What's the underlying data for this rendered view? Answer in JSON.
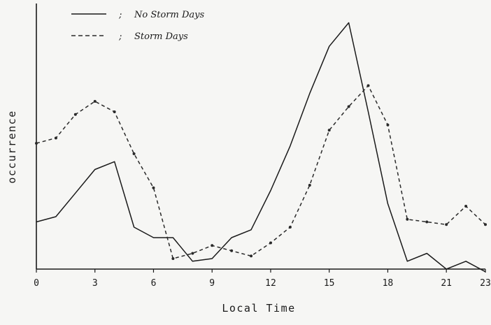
{
  "chart_data": {
    "type": "line",
    "title": "",
    "xlabel": "Local Time",
    "ylabel": "occurrence",
    "xlim": [
      0,
      23
    ],
    "ylim": [
      0,
      1
    ],
    "x_ticks": [
      0,
      3,
      6,
      9,
      12,
      15,
      18,
      21,
      23
    ],
    "grid": false,
    "legend_position": "top-left",
    "series": [
      {
        "name": "No Storm Days",
        "style": "solid",
        "color": "#1a1a1a",
        "x": [
          0,
          1,
          2,
          3,
          4,
          5,
          6,
          7,
          8,
          9,
          10,
          11,
          12,
          13,
          14,
          15,
          16,
          17,
          18,
          19,
          20,
          21,
          22,
          23
        ],
        "y": [
          0.18,
          0.2,
          0.29,
          0.38,
          0.41,
          0.16,
          0.12,
          0.12,
          0.03,
          0.04,
          0.12,
          0.15,
          0.3,
          0.47,
          0.67,
          0.85,
          0.94,
          0.6,
          0.25,
          0.03,
          0.06,
          0.0,
          0.03,
          -0.01
        ]
      },
      {
        "name": "Storm Days",
        "style": "dashed",
        "color": "#2a2a2a",
        "x": [
          0,
          1,
          2,
          3,
          4,
          5,
          6,
          7,
          8,
          9,
          10,
          11,
          12,
          13,
          14,
          15,
          16,
          17,
          18,
          19,
          20,
          21,
          22,
          23
        ],
        "y": [
          0.48,
          0.5,
          0.59,
          0.64,
          0.6,
          0.44,
          0.31,
          0.04,
          0.06,
          0.09,
          0.07,
          0.05,
          0.1,
          0.16,
          0.32,
          0.53,
          0.62,
          0.7,
          0.55,
          0.19,
          0.18,
          0.17,
          0.24,
          0.17
        ]
      }
    ]
  },
  "legend": {
    "separator": ";",
    "items": [
      {
        "label": "No Storm Days"
      },
      {
        "label": "Storm Days"
      }
    ]
  }
}
